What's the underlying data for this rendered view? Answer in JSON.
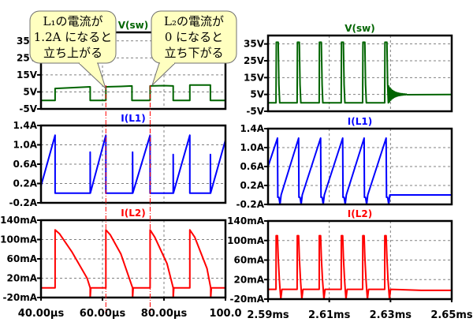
{
  "chart_data": [
    {
      "type": "line",
      "panel": "left-top",
      "title": "V(sw)",
      "color": "#006400",
      "xlim": [
        40,
        100
      ],
      "ylim": [
        -5,
        40
      ],
      "yticks": [
        {
          "v": 35,
          "label": "35V"
        },
        {
          "v": 25,
          "label": "25V"
        },
        {
          "v": 15,
          "label": "15V"
        },
        {
          "v": 5,
          "label": "5V"
        },
        {
          "v": -5,
          "label": "-5V"
        }
      ],
      "xgrid": [
        60,
        80
      ],
      "points": [
        [
          40,
          0
        ],
        [
          44.6,
          0
        ],
        [
          44.6,
          7
        ],
        [
          50,
          7.5
        ],
        [
          56,
          8
        ],
        [
          56,
          0
        ],
        [
          61.1,
          0
        ],
        [
          61.1,
          8
        ],
        [
          66,
          8.2
        ],
        [
          69.6,
          8.5
        ],
        [
          69.6,
          0
        ],
        [
          75.5,
          0
        ],
        [
          75.5,
          8.5
        ],
        [
          80,
          8.7
        ],
        [
          83,
          8.5
        ],
        [
          83,
          0
        ],
        [
          88.4,
          0
        ],
        [
          88.4,
          9
        ],
        [
          95.1,
          9
        ],
        [
          95.1,
          0
        ],
        [
          100,
          0
        ]
      ]
    },
    {
      "type": "line",
      "panel": "left-mid",
      "title": "I(L1)",
      "color": "#0000ff",
      "xlim": [
        40,
        100
      ],
      "ylim": [
        -0.2,
        1.4
      ],
      "yticks": [
        {
          "v": 1.4,
          "label": "1.4A"
        },
        {
          "v": 1.0,
          "label": "1.0A"
        },
        {
          "v": 0.6,
          "label": "0.6A"
        },
        {
          "v": 0.2,
          "label": "0.2A"
        },
        {
          "v": -0.2,
          "label": "-0.2A"
        }
      ],
      "xgrid": [
        60,
        80
      ],
      "points": [
        [
          40,
          0.15
        ],
        [
          44.6,
          1.2
        ],
        [
          44.6,
          0
        ],
        [
          56,
          0
        ],
        [
          56,
          0.85
        ],
        [
          56.05,
          0
        ],
        [
          61.1,
          1.2
        ],
        [
          61.1,
          0
        ],
        [
          69.8,
          0
        ],
        [
          69.8,
          0.85
        ],
        [
          69.85,
          0
        ],
        [
          75.5,
          1.2
        ],
        [
          75.5,
          0
        ],
        [
          83,
          0
        ],
        [
          83,
          0.8
        ],
        [
          83.05,
          0
        ],
        [
          88.4,
          1.2
        ],
        [
          88.4,
          0
        ],
        [
          95.1,
          0
        ],
        [
          95.1,
          0.8
        ],
        [
          95.15,
          0
        ],
        [
          100,
          1.1
        ]
      ]
    },
    {
      "type": "line",
      "panel": "left-bot",
      "title": "I(L2)",
      "color": "#ff0000",
      "xlim": [
        40,
        100
      ],
      "ylim": [
        -20,
        140
      ],
      "yticks": [
        {
          "v": 140,
          "label": "140mA"
        },
        {
          "v": 100,
          "label": "100mA"
        },
        {
          "v": 60,
          "label": "60mA"
        },
        {
          "v": 20,
          "label": "20mA"
        },
        {
          "v": -20,
          "label": "-20mA"
        }
      ],
      "xgrid": [
        60,
        80
      ],
      "xticks": [
        {
          "v": 40,
          "label": "40.00µs"
        },
        {
          "v": 60,
          "label": "60.00µs"
        },
        {
          "v": 80,
          "label": "80.00µs"
        },
        {
          "v": 100,
          "label": "100.0"
        }
      ],
      "points": [
        [
          40,
          0
        ],
        [
          44.6,
          0
        ],
        [
          44.6,
          120
        ],
        [
          46,
          112
        ],
        [
          50,
          75
        ],
        [
          55,
          20
        ],
        [
          56,
          0
        ],
        [
          56,
          -20
        ],
        [
          56.2,
          0
        ],
        [
          61.1,
          0
        ],
        [
          61.1,
          120
        ],
        [
          62.5,
          110
        ],
        [
          66,
          70
        ],
        [
          69.8,
          0
        ],
        [
          69.8,
          -20
        ],
        [
          70,
          0
        ],
        [
          75.5,
          0
        ],
        [
          75.5,
          120
        ],
        [
          77,
          105
        ],
        [
          81,
          50
        ],
        [
          83,
          0
        ],
        [
          83,
          -20
        ],
        [
          83.2,
          0
        ],
        [
          88.4,
          0
        ],
        [
          88.4,
          120
        ],
        [
          90,
          105
        ],
        [
          94,
          40
        ],
        [
          95.2,
          0
        ],
        [
          95.2,
          -20
        ],
        [
          95.4,
          0
        ],
        [
          100,
          0
        ]
      ]
    },
    {
      "type": "line",
      "panel": "right-top",
      "title": "V(sw)",
      "color": "#006400",
      "xlim": [
        2.59,
        2.65
      ],
      "ylim": [
        -5,
        40
      ],
      "yticks": [
        {
          "v": 35,
          "label": "35V"
        },
        {
          "v": 25,
          "label": "25V"
        },
        {
          "v": 15,
          "label": "15V"
        },
        {
          "v": 5,
          "label": "5V"
        },
        {
          "v": -5,
          "label": "-5V"
        }
      ],
      "xgrid": [
        2.61,
        2.63
      ],
      "pulse_times": [
        2.5926,
        2.5995,
        2.6067,
        2.6139,
        2.6209,
        2.6281
      ],
      "pulse_width": 0.0012,
      "low": 0,
      "high": 36,
      "settle": 5
    },
    {
      "type": "line",
      "panel": "right-mid",
      "title": "I(L1)",
      "color": "#0000ff",
      "xlim": [
        2.59,
        2.65
      ],
      "ylim": [
        -0.2,
        1.4
      ],
      "yticks": [
        {
          "v": 1.4,
          "label": "1.4A"
        },
        {
          "v": 1.0,
          "label": "1.0A"
        },
        {
          "v": 0.6,
          "label": "0.6A"
        },
        {
          "v": 0.2,
          "label": "0.2A"
        },
        {
          "v": -0.2,
          "label": "-0.2A"
        }
      ],
      "xgrid": [
        2.61,
        2.63
      ],
      "pulse_times": [
        2.5926,
        2.5995,
        2.6067,
        2.6139,
        2.6209,
        2.6281
      ],
      "pulse_width": 0.0012,
      "start": 0.6,
      "peak": 1.2,
      "low": 0,
      "dip": -0.2
    },
    {
      "type": "line",
      "panel": "right-bot",
      "title": "I(L2)",
      "color": "#ff0000",
      "xlim": [
        2.59,
        2.65
      ],
      "ylim": [
        -20,
        140
      ],
      "yticks": [
        {
          "v": 140,
          "label": "140mA"
        },
        {
          "v": 100,
          "label": "100mA"
        },
        {
          "v": 60,
          "label": "60mA"
        },
        {
          "v": 20,
          "label": "20mA"
        },
        {
          "v": -20,
          "label": "-20mA"
        }
      ],
      "xgrid": [
        2.61,
        2.63
      ],
      "xticks": [
        {
          "v": 2.59,
          "label": "2.59ms"
        },
        {
          "v": 2.61,
          "label": "2.61ms"
        },
        {
          "v": 2.63,
          "label": "2.63ms"
        },
        {
          "v": 2.65,
          "label": "2.65ms"
        }
      ],
      "pulse_times": [
        2.5926,
        2.5995,
        2.6067,
        2.6139,
        2.6209,
        2.6281
      ],
      "pulse_width": 0.0012,
      "peak": 110,
      "low": 0,
      "dip": -20
    }
  ],
  "markers": {
    "color": "#ff0000",
    "times_us": [
      61.1,
      75.5
    ]
  },
  "callouts": [
    {
      "lines": [
        "L₁の電流が",
        "1.2A になると",
        "立ち上がる"
      ]
    },
    {
      "lines": [
        "L₂の電流が",
        "0 になると",
        "立ち下がる"
      ]
    }
  ],
  "colors": {
    "callout_fill": "#ffffc0",
    "grid": "#808080"
  }
}
